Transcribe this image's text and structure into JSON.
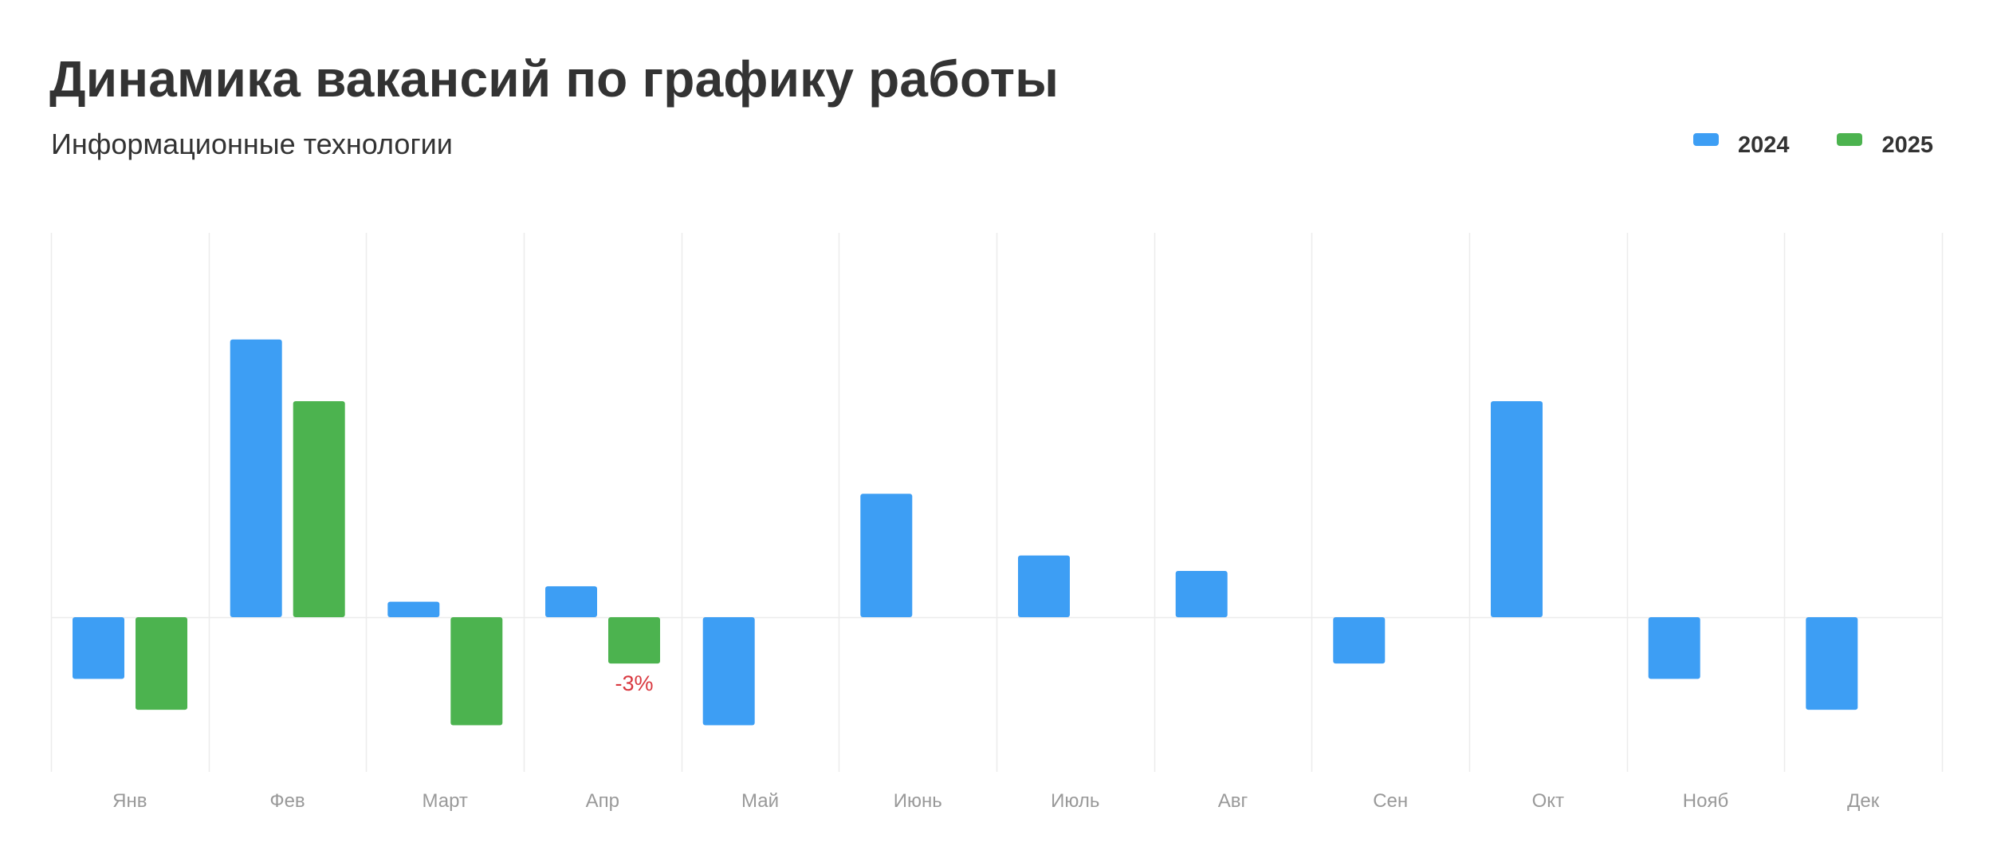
{
  "chart_data": {
    "type": "bar",
    "title": "Динамика вакансий по графику работы",
    "subtitle": "Информационные технологии",
    "categories": [
      "Янв",
      "Фев",
      "Март",
      "Апр",
      "Май",
      "Июнь",
      "Июль",
      "Авг",
      "Сен",
      "Окт",
      "Нояб",
      "Дек"
    ],
    "series": [
      {
        "name": "2024",
        "color": "#3d9ef4",
        "values": [
          -4,
          18,
          1,
          2,
          -7,
          8,
          4,
          3,
          -3,
          14,
          -4,
          -6
        ]
      },
      {
        "name": "2025",
        "color": "#4cb34f",
        "values": [
          -6,
          14,
          -7,
          -3,
          null,
          null,
          null,
          null,
          null,
          null,
          null,
          null
        ]
      }
    ],
    "data_labels": [
      {
        "series": 1,
        "category": 3,
        "text": "-3%",
        "color": "#d9383f"
      }
    ],
    "ylim": [
      -10,
      25
    ],
    "grid": true,
    "legend": "top-right",
    "xlabel": "",
    "ylabel": ""
  }
}
